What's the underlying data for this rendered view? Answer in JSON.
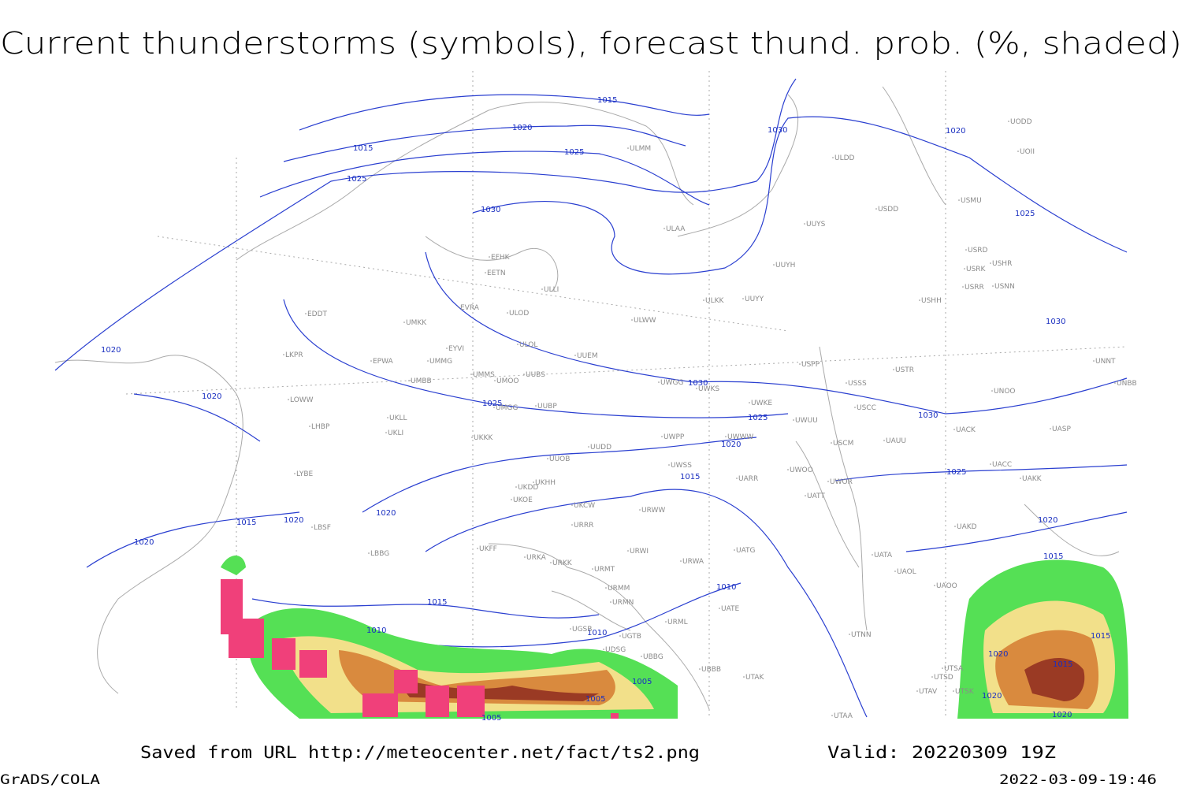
{
  "header": {
    "title": "Current thunderstorms (symbols), forecast thund. prob. (%, shaded)"
  },
  "isobar_labels": [
    1015,
    1020,
    1015,
    1025,
    1025,
    1030,
    1020,
    1030,
    1025,
    1030,
    1020,
    1020,
    1030,
    1025,
    1025,
    1030,
    1020,
    1015,
    1025,
    1020,
    1020,
    1015,
    1020,
    1020,
    1015,
    1010,
    1015,
    1010,
    1010,
    1005,
    1005,
    1005,
    1015,
    1020,
    1015,
    1020,
    1020
  ],
  "stations": [
    "EDDT",
    "LKPR",
    "LOWW",
    "LHBP",
    "LYBE",
    "LBSF",
    "LBBG",
    "EPWA",
    "UMKK",
    "EYVI",
    "UMMG",
    "UMBB",
    "UKLL",
    "UKLI",
    "UKKK",
    "UMMS",
    "UMOO",
    "UUBS",
    "UMGG",
    "UUBP",
    "UUEM",
    "ULOL",
    "ULOD",
    "EVRA",
    "EETN",
    "EFHK",
    "ULLI",
    "ULWW",
    "ULKK",
    "UUYY",
    "UUYH",
    "UUYS",
    "ULAA",
    "ULMM",
    "ULDD",
    "USDD",
    "USMU",
    "USRD",
    "USRK",
    "USHR",
    "USRR",
    "USNN",
    "USHH",
    "USPP",
    "USTR",
    "USSS",
    "UWKS",
    "UWGG",
    "UWKE",
    "UWUU",
    "USCC",
    "UNOO",
    "UNBB",
    "UNNT",
    "USCM",
    "UAUU",
    "UACK",
    "UASP",
    "UWPP",
    "UWWW",
    "UUDD",
    "UUOB",
    "UWSS",
    "UARR",
    "UWOO",
    "UWOR",
    "UATT",
    "UACC",
    "UAKK",
    "UKDD",
    "UKHH",
    "UKOE",
    "UKFF",
    "URRR",
    "UKCW",
    "URWW",
    "URWI",
    "URKA",
    "URKK",
    "URMT",
    "URMM",
    "URMN",
    "URWA",
    "UATG",
    "UATE",
    "UATA",
    "UAOL",
    "UAOO",
    "UAKD",
    "UTNN",
    "URML",
    "UGTB",
    "UGSB",
    "UDSG",
    "UBBG",
    "UBBB",
    "UTAK",
    "UTSA",
    "UTSD",
    "UTAV",
    "UTSK",
    "UTAA",
    "UODD",
    "UOII"
  ],
  "footer": {
    "saved": "Saved from URL http://meteocenter.net/fact/ts2.png",
    "valid": "Valid: 20220309 19Z",
    "software": "GrADS/COLA",
    "timestamp": "2022-03-09-19:46"
  }
}
